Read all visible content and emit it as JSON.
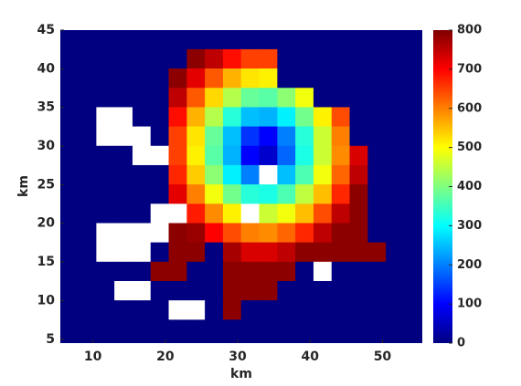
{
  "chart_data": {
    "type": "heatmap",
    "xlabel": "km",
    "ylabel": "km",
    "xlim": [
      5.5,
      55.5
    ],
    "ylim": [
      4.5,
      45
    ],
    "xticks": [
      10,
      20,
      30,
      40,
      50
    ],
    "yticks": [
      5,
      10,
      15,
      20,
      25,
      30,
      35,
      40,
      45
    ],
    "colormap": "jet",
    "zlim": [
      0,
      800
    ],
    "colorbar_ticks": [
      0,
      100,
      200,
      300,
      400,
      500,
      600,
      700,
      800
    ],
    "x": [
      6.75,
      9.25,
      11.75,
      14.25,
      16.75,
      19.25,
      21.75,
      24.25,
      26.75,
      29.25,
      31.75,
      34.25,
      36.75,
      39.25,
      41.75,
      44.25,
      46.75,
      49.25,
      51.75,
      54.25
    ],
    "y": [
      43.75,
      41.25,
      38.75,
      36.25,
      33.75,
      31.25,
      28.75,
      26.25,
      23.75,
      21.25,
      18.75,
      16.25,
      13.75,
      11.25,
      8.75,
      6.25
    ],
    "z": [
      [
        0,
        0,
        0,
        0,
        0,
        0,
        0,
        0,
        0,
        0,
        0,
        0,
        0,
        0,
        0,
        0,
        0,
        0,
        0,
        0
      ],
      [
        0,
        0,
        0,
        0,
        0,
        0,
        0,
        790,
        750,
        690,
        650,
        650,
        0,
        0,
        0,
        0,
        0,
        0,
        0,
        0
      ],
      [
        0,
        0,
        0,
        0,
        0,
        0,
        790,
        720,
        630,
        560,
        520,
        510,
        0,
        0,
        0,
        0,
        0,
        0,
        0,
        0
      ],
      [
        0,
        0,
        0,
        0,
        0,
        0,
        750,
        630,
        530,
        440,
        380,
        370,
        410,
        490,
        0,
        0,
        0,
        0,
        0,
        0
      ],
      [
        0,
        0,
        null,
        null,
        0,
        0,
        690,
        560,
        440,
        330,
        250,
        240,
        290,
        390,
        510,
        640,
        0,
        0,
        0,
        0
      ],
      [
        0,
        0,
        null,
        null,
        null,
        0,
        650,
        520,
        380,
        250,
        140,
        100,
        200,
        330,
        460,
        600,
        0,
        0,
        0,
        0
      ],
      [
        0,
        0,
        0,
        0,
        null,
        null,
        650,
        510,
        370,
        240,
        100,
        60,
        180,
        320,
        460,
        590,
        730,
        0,
        0,
        0
      ],
      [
        0,
        0,
        0,
        0,
        0,
        0,
        670,
        540,
        410,
        290,
        200,
        null,
        250,
        360,
        490,
        620,
        750,
        0,
        0,
        0
      ],
      [
        0,
        0,
        0,
        0,
        0,
        0,
        720,
        600,
        490,
        390,
        330,
        320,
        360,
        450,
        550,
        670,
        790,
        0,
        0,
        0
      ],
      [
        0,
        0,
        0,
        0,
        0,
        null,
        null,
        680,
        590,
        510,
        null,
        460,
        490,
        550,
        640,
        750,
        790,
        0,
        0,
        0
      ],
      [
        0,
        0,
        null,
        null,
        null,
        null,
        790,
        780,
        700,
        640,
        600,
        590,
        620,
        670,
        750,
        790,
        790,
        0,
        0,
        0
      ],
      [
        0,
        0,
        null,
        null,
        null,
        0,
        790,
        790,
        0,
        770,
        730,
        730,
        750,
        790,
        790,
        790,
        790,
        790,
        0,
        0
      ],
      [
        0,
        0,
        0,
        0,
        0,
        790,
        790,
        0,
        0,
        790,
        790,
        790,
        790,
        0,
        null,
        0,
        0,
        0,
        0,
        0
      ],
      [
        0,
        0,
        0,
        null,
        null,
        0,
        0,
        0,
        0,
        790,
        790,
        790,
        0,
        0,
        0,
        0,
        0,
        0,
        0,
        0
      ],
      [
        0,
        0,
        0,
        0,
        0,
        0,
        null,
        null,
        0,
        790,
        0,
        0,
        0,
        0,
        0,
        0,
        0,
        0,
        0,
        0
      ],
      [
        0,
        0,
        0,
        0,
        0,
        0,
        0,
        0,
        0,
        0,
        0,
        0,
        0,
        0,
        0,
        0,
        0,
        0,
        0,
        0
      ]
    ]
  }
}
